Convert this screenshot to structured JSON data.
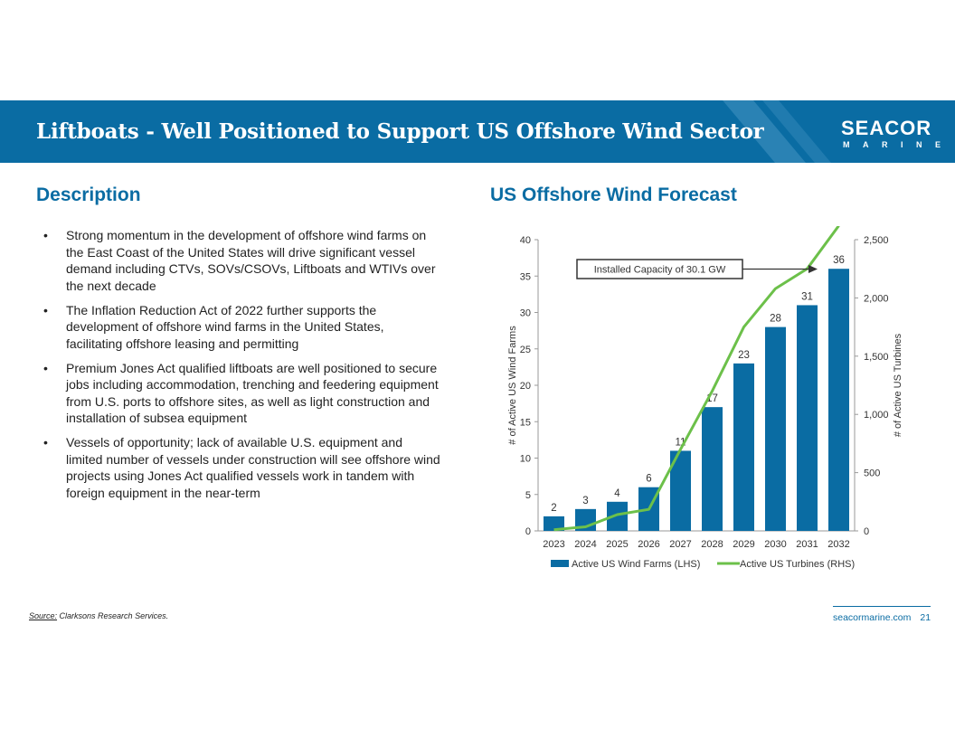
{
  "header": {
    "title": "Liftboats - Well Positioned to Support US Offshore Wind Sector",
    "logo_line1": "SEACOR",
    "logo_line2": "MARINE"
  },
  "left": {
    "heading": "Description",
    "bullets": [
      "Strong momentum in the development of offshore wind farms on the East Coast of the United States will drive significant vessel demand including CTVs, SOVs/CSOVs, Liftboats and WTIVs over the next decade",
      "The Inflation Reduction Act of 2022 further supports the development of offshore wind farms in the United States, facilitating offshore leasing and permitting",
      "Premium Jones Act qualified liftboats are well positioned to secure jobs including accommodation, trenching and feedering equipment from U.S. ports to offshore sites, as well as light construction and installation of subsea equipment",
      "Vessels of opportunity; lack of available U.S. equipment and limited number of vessels under construction will see offshore wind projects using Jones Act qualified vessels work in tandem with foreign equipment in the near-term"
    ],
    "bullet_char": "•"
  },
  "right": {
    "heading": "US Offshore Wind Forecast"
  },
  "chart_data": {
    "type": "bar",
    "categories": [
      "2023",
      "2024",
      "2025",
      "2026",
      "2027",
      "2028",
      "2029",
      "2030",
      "2031",
      "2032"
    ],
    "series": [
      {
        "name": "Active US Wind Farms (LHS)",
        "type": "bar",
        "axis": "left",
        "color": "#0a6ca3",
        "values": [
          2,
          3,
          4,
          6,
          11,
          17,
          23,
          28,
          31,
          36
        ]
      },
      {
        "name": "Active US Turbines (RHS)",
        "type": "line",
        "axis": "right",
        "color": "#6cc04a",
        "values": [
          10,
          35,
          140,
          185,
          700,
          1200,
          1750,
          2080,
          2250,
          2620
        ]
      }
    ],
    "ylim_left": [
      0,
      40
    ],
    "yticks_left": [
      "0",
      "5",
      "10",
      "15",
      "20",
      "25",
      "30",
      "35",
      "40"
    ],
    "ylim_right": [
      0,
      2500
    ],
    "yticks_right": [
      "0",
      "500",
      "1,000",
      "1,500",
      "2,000",
      "2,500"
    ],
    "ylabel_left": "# of Active US Wind Farms",
    "ylabel_right": "# of Active US Turbines",
    "annotation": "Installed Capacity of 30.1 GW",
    "legend_position": "bottom"
  },
  "footer": {
    "source_label": "Source:",
    "source_text": " Clarksons Research Services.",
    "website": "seacormarine.com",
    "page": "21"
  },
  "colors": {
    "brand": "#0a6ca3",
    "line": "#6cc04a"
  }
}
